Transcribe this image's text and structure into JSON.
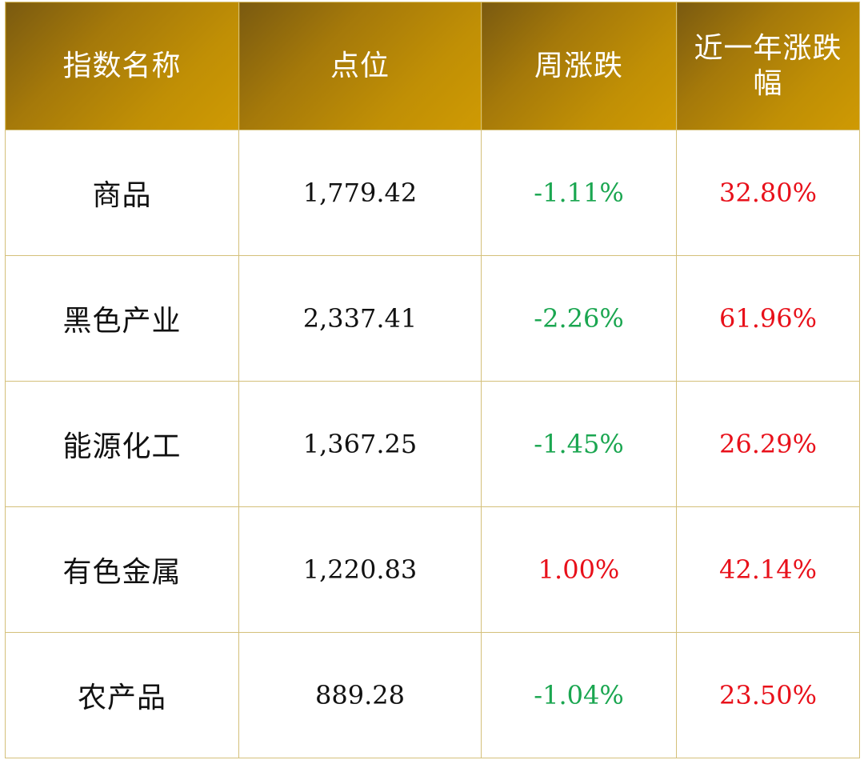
{
  "header": {
    "name": "指数名称",
    "level": "点位",
    "weekly_change": "周涨跌",
    "yearly_change": "近一年涨跌幅"
  },
  "colors": {
    "header_gold": "#c08f05",
    "negative": "#1aa650",
    "positive": "#e8101a",
    "border": "#d4c07a"
  },
  "rows": [
    {
      "name": "商品",
      "level": "1,779.42",
      "weekly": "-1.11%",
      "weekly_sign": "neg",
      "yearly": "32.80%"
    },
    {
      "name": "黑色产业",
      "level": "2,337.41",
      "weekly": "-2.26%",
      "weekly_sign": "neg",
      "yearly": "61.96%"
    },
    {
      "name": "能源化工",
      "level": "1,367.25",
      "weekly": "-1.45%",
      "weekly_sign": "neg",
      "yearly": "26.29%"
    },
    {
      "name": "有色金属",
      "level": "1,220.83",
      "weekly": "1.00%",
      "weekly_sign": "pos",
      "yearly": "42.14%"
    },
    {
      "name": "农产品",
      "level": "889.28",
      "weekly": "-1.04%",
      "weekly_sign": "neg",
      "yearly": "23.50%"
    }
  ]
}
